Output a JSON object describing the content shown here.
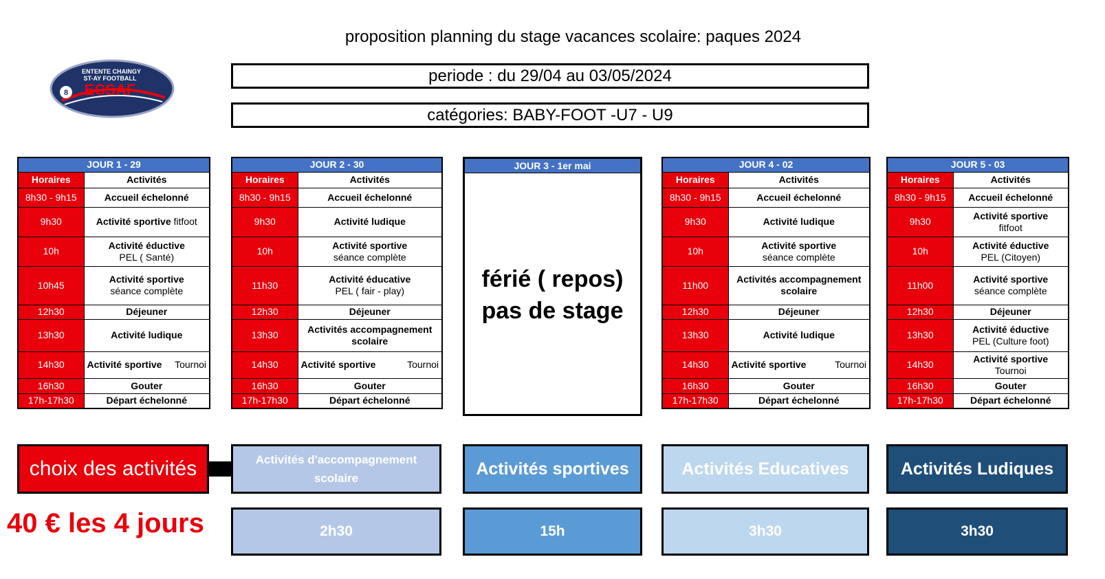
{
  "header": {
    "title": "proposition planning du stage vacances scolaire: paques 2024",
    "period": "periode : du 29/04 au 03/05/2024",
    "categories": "catégories: BABY-FOOT -U7 - U9"
  },
  "logo": {
    "line1": "ENTENTE CHAINGY",
    "line2": "ST-AY  FOOTBALL",
    "name": "ECSAF",
    "colors": {
      "navy": "#1f3368",
      "red": "#e8000b"
    }
  },
  "columns": {
    "hours": "Horaires",
    "activities": "Activités"
  },
  "days": [
    {
      "title": "JOUR 1    - 29",
      "rows": [
        {
          "time": "8h30 - 9h15",
          "activity": "Accueil échelonné"
        },
        {
          "time": "9h30",
          "activity": "Activité sportive",
          "extra": "fitfoot"
        },
        {
          "time": "10h",
          "activity": "Activité éductive",
          "extra": "PEL ( Santé)"
        },
        {
          "time": "10h45",
          "activity": "Activité sportive",
          "extra": "séance complète"
        },
        {
          "time": "12h30",
          "activity": "Déjeuner"
        },
        {
          "time": "13h30",
          "activity": "Activité ludique"
        },
        {
          "time": "14h30",
          "activity": "Activité sportive",
          "extra": "Tournoi"
        },
        {
          "time": "16h30",
          "activity": "Gouter"
        },
        {
          "time": "17h-17h30",
          "activity": "Départ échelonné"
        }
      ]
    },
    {
      "title": "JOUR 2  -  30",
      "rows": [
        {
          "time": "8h30 - 9h15",
          "activity": "Accueil échelonné"
        },
        {
          "time": "9h30",
          "activity": "Activité ludique"
        },
        {
          "time": "10h",
          "activity": "Activité sportive",
          "extra": "séance complète"
        },
        {
          "time": "11h30",
          "activity": "Activité éducative",
          "extra": "PEL ( fair - play)"
        },
        {
          "time": "12h30",
          "activity": "Déjeuner"
        },
        {
          "time": "13h30",
          "activity": "Activités accompagnement scolaire"
        },
        {
          "time": "14h30",
          "activity": "Activité sportive",
          "extra": "Tournoi"
        },
        {
          "time": "16h30",
          "activity": "Gouter"
        },
        {
          "time": "17h-17h30",
          "activity": "Départ échelonné"
        }
      ]
    },
    {
      "title": "JOUR 3  -  1er  mai",
      "holiday_line1": "férié  ( repos)",
      "holiday_line2": "pas de stage"
    },
    {
      "title": "JOUR 4  -  02",
      "rows": [
        {
          "time": "8h30 - 9h15",
          "activity": "Accueil échelonné"
        },
        {
          "time": "9h30",
          "activity": "Activité ludique"
        },
        {
          "time": "10h",
          "activity": "Activité sportive",
          "extra": "séance  complète"
        },
        {
          "time": "11h00",
          "activity": "Activités accompagnement scolaire"
        },
        {
          "time": "12h30",
          "activity": "Déjeuner"
        },
        {
          "time": "13h30",
          "activity": "Activité ludique"
        },
        {
          "time": "14h30",
          "activity": "Activité sportive",
          "extra": "Tournoi"
        },
        {
          "time": "16h30",
          "activity": "Gouter"
        },
        {
          "time": "17h-17h30",
          "activity": "Départ échelonné"
        }
      ]
    },
    {
      "title": "JOUR 5 - 03",
      "rows": [
        {
          "time": "8h30 - 9h15",
          "activity": "Accueil échelonné"
        },
        {
          "time": "9h30",
          "activity": "Activité sportive",
          "extra": "fitfoot"
        },
        {
          "time": "10h",
          "activity": "Activité éductive",
          "extra": "PEL (Citoyen)"
        },
        {
          "time": "11h00",
          "activity": "Activité sportive",
          "extra": "séance  complète"
        },
        {
          "time": "12h30",
          "activity": "Déjeuner"
        },
        {
          "time": "13h30",
          "activity": "Activité éductive",
          "extra": "PEL (Culture foot)"
        },
        {
          "time": "14h30",
          "activity": "Activité sportive",
          "extra": "Tournoi"
        },
        {
          "time": "16h30",
          "activity": "Gouter"
        },
        {
          "time": "17h-17h30",
          "activity": "Départ échelonné"
        }
      ]
    }
  ],
  "summary": {
    "choice_label": "choix des activités",
    "price": "40 € les 4 jours",
    "categories": [
      {
        "label": "Activités d'accompagnement scolaire",
        "hours": "2h30",
        "color": "#b4c7e7"
      },
      {
        "label": "Activités  sportives",
        "hours": "15h",
        "color": "#5b9bd5"
      },
      {
        "label": "Activités Educatives",
        "hours": "3h30",
        "color": "#bdd7ee"
      },
      {
        "label": "Activités  Ludiques",
        "hours": "3h30",
        "color": "#1f4e79"
      }
    ]
  },
  "colors": {
    "header_blue": "#4472c4",
    "hours_red": "#e8000b"
  }
}
